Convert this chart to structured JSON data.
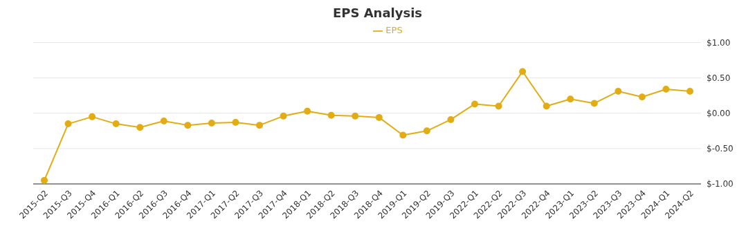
{
  "chart_data": {
    "type": "line",
    "title": "EPS Analysis",
    "categories": [
      "2015-Q2",
      "2015-Q3",
      "2015-Q4",
      "2016-Q1",
      "2016-Q2",
      "2016-Q3",
      "2016-Q4",
      "2017-Q1",
      "2017-Q2",
      "2017-Q3",
      "2017-Q4",
      "2018-Q1",
      "2018-Q2",
      "2018-Q3",
      "2018-Q4",
      "2019-Q1",
      "2019-Q2",
      "2019-Q3",
      "2022-Q1",
      "2022-Q2",
      "2022-Q3",
      "2022-Q4",
      "2023-Q1",
      "2023-Q2",
      "2023-Q3",
      "2023-Q4",
      "2024-Q1",
      "2024-Q2"
    ],
    "series": [
      {
        "name": "EPS",
        "color": "#e2ac14",
        "values": [
          -0.95,
          -0.15,
          -0.05,
          -0.15,
          -0.2,
          -0.11,
          -0.17,
          -0.14,
          -0.13,
          -0.17,
          -0.04,
          0.03,
          -0.03,
          -0.04,
          -0.06,
          -0.31,
          -0.25,
          -0.09,
          0.13,
          0.1,
          0.59,
          0.1,
          0.2,
          0.14,
          0.31,
          0.23,
          0.34,
          0.31
        ]
      }
    ],
    "ylim": [
      -1,
      1
    ],
    "yticks": [
      {
        "value": -1,
        "label": "$-1.00"
      },
      {
        "value": -0.5,
        "label": "$-0.50"
      },
      {
        "value": 0,
        "label": "$0.00"
      },
      {
        "value": 0.5,
        "label": "$0.50"
      },
      {
        "value": 1,
        "label": "$1.00"
      }
    ],
    "grid": "y",
    "legend": "top",
    "marker": "circle",
    "line_style": "solid"
  }
}
